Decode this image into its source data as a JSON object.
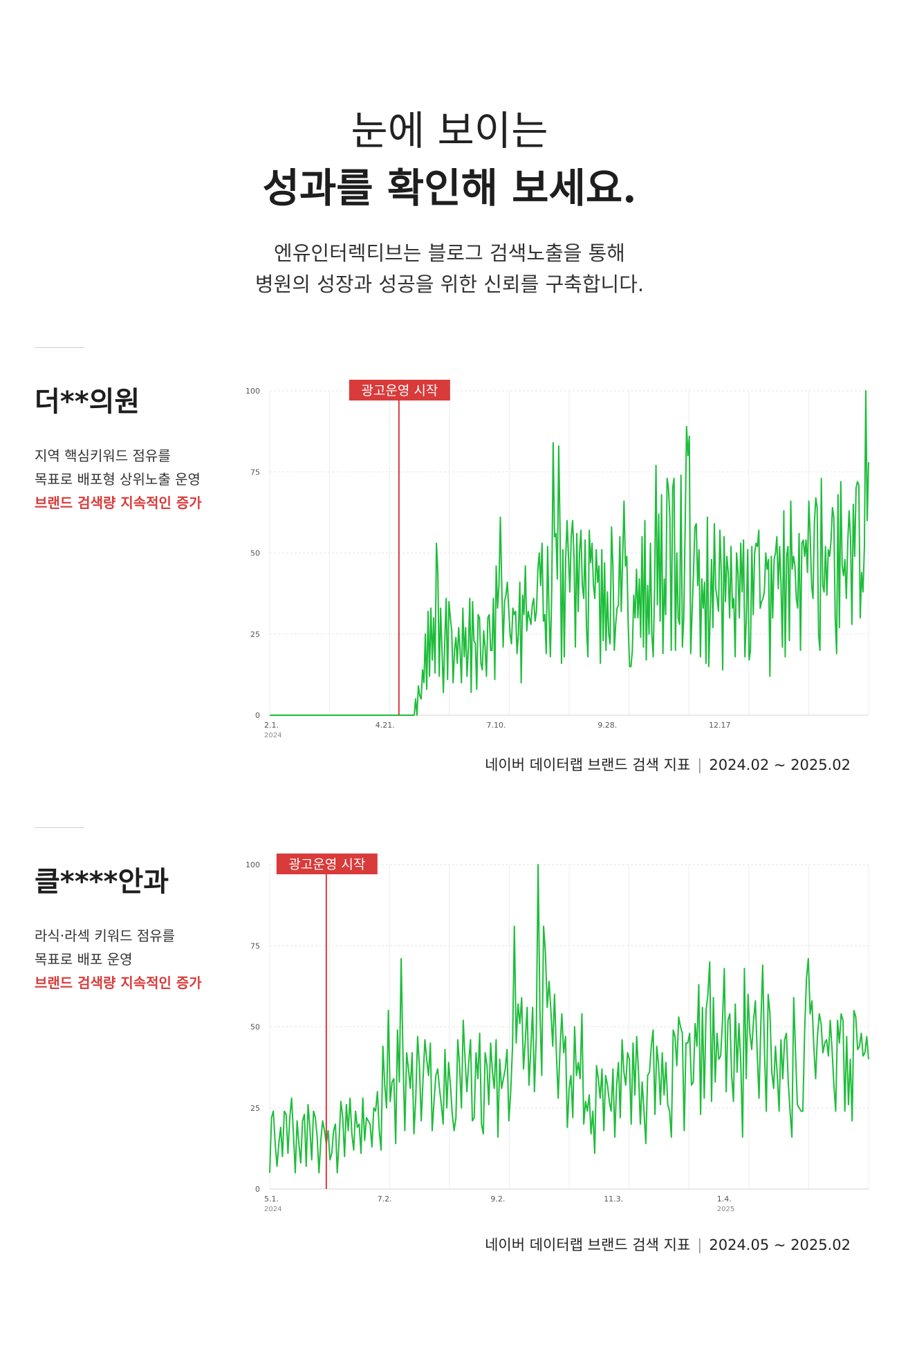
{
  "hero": {
    "headline_line1": "눈에 보이는",
    "headline_line2": "성과를 확인해 보세요.",
    "intro_line1": "엔유인터렉티브는 블로그 검색노출을 통해",
    "intro_line2": "병원의 성장과 성공을 위한 신뢰를 구축합니다."
  },
  "cases": [
    {
      "title": "더**의원",
      "desc_line1": "지역 핵심키워드 점유를",
      "desc_line2": "목표로 배포형 상위노출 운영",
      "highlight": "브랜드 검색량 지속적인 증가",
      "caption_source": "네이버 데이터랩 브랜드 검색 지표",
      "caption_separator": "|",
      "caption_period": "2024.02 ~ 2025.02"
    },
    {
      "title": "클****안과",
      "desc_line1": "라식·라섹 키워드 점유를",
      "desc_line2": "목표로 배포 운영",
      "highlight": "브랜드 검색량 지속적인 증가",
      "caption_source": "네이버 데이터랩 브랜드 검색 지표",
      "caption_separator": "|",
      "caption_period": "2024.05 ~ 2025.02"
    }
  ],
  "chart_data": [
    {
      "type": "line",
      "title": "",
      "ylim": [
        0,
        100
      ],
      "y_ticks": [
        0,
        25,
        50,
        75,
        100
      ],
      "y_tick_labels": [
        "0",
        "25",
        "50",
        "75",
        "100"
      ],
      "x_tick_labels": [
        {
          "label": "2.1.",
          "sub": "2024",
          "index": 0
        },
        {
          "label": "4.21.",
          "sub": "",
          "index": 80
        },
        {
          "label": "7.10.",
          "sub": "",
          "index": 160
        },
        {
          "label": "9.28.",
          "sub": "",
          "index": 240
        },
        {
          "label": "12.17",
          "sub": "",
          "index": 320
        }
      ],
      "grid": true,
      "annotation": {
        "label": "광고운영 시작",
        "index": 93,
        "color": "#d93a3a"
      },
      "series": [
        {
          "color": "#1dbd3a",
          "values": [
            0,
            0,
            0,
            0,
            0,
            0,
            0,
            0,
            0,
            0,
            0,
            0,
            0,
            0,
            0,
            0,
            0,
            0,
            0,
            0,
            0,
            0,
            0,
            0,
            0,
            0,
            0,
            0,
            0,
            0,
            0,
            0,
            0,
            0,
            0,
            0,
            0,
            0,
            0,
            0,
            0,
            0,
            0,
            0,
            0,
            0,
            0,
            0,
            0,
            0,
            0,
            0,
            0,
            0,
            0,
            0,
            0,
            0,
            0,
            0,
            0,
            0,
            0,
            0,
            0,
            0,
            0,
            0,
            0,
            0,
            0,
            0,
            0,
            0,
            0,
            0,
            0,
            0,
            0,
            0,
            0,
            0,
            0,
            0,
            0,
            0,
            0,
            0,
            0,
            0,
            0,
            0,
            0,
            0,
            0,
            0,
            0,
            0,
            0,
            0,
            0,
            0,
            0,
            0,
            0,
            5,
            0,
            9,
            6,
            5,
            14,
            10,
            25,
            8,
            32,
            12,
            33,
            17,
            30,
            13,
            53,
            44,
            12,
            33,
            20,
            7,
            23,
            36,
            11,
            35,
            30,
            26,
            10,
            20,
            24,
            16,
            27,
            20,
            10,
            33,
            18,
            27,
            12,
            21,
            36,
            7,
            35,
            23,
            22,
            8,
            31,
            30,
            16,
            14,
            26,
            21,
            12,
            30,
            31,
            20,
            20,
            36,
            11,
            46,
            33,
            40,
            61,
            40,
            21,
            35,
            37,
            41,
            33,
            25,
            22,
            33,
            31,
            32,
            19,
            25,
            41,
            10,
            37,
            31,
            46,
            26,
            32,
            30,
            28,
            34,
            36,
            29,
            32,
            45,
            50,
            40,
            53,
            29,
            31,
            19,
            52,
            32,
            18,
            39,
            84,
            55,
            56,
            42,
            83,
            56,
            16,
            51,
            18,
            48,
            60,
            49,
            38,
            55,
            60,
            49,
            21,
            56,
            32,
            50,
            57,
            40,
            36,
            54,
            27,
            18,
            57,
            47,
            53,
            40,
            36,
            51,
            41,
            46,
            16,
            51,
            23,
            47,
            20,
            38,
            25,
            22,
            58,
            46,
            20,
            28,
            33,
            34,
            55,
            32,
            48,
            66,
            46,
            49,
            28,
            15,
            15,
            20,
            37,
            30,
            45,
            30,
            42,
            24,
            55,
            21,
            60,
            17,
            40,
            25,
            53,
            25,
            18,
            39,
            77,
            34,
            62,
            29,
            68,
            19,
            42,
            31,
            73,
            70,
            61,
            20,
            70,
            73,
            20,
            50,
            30,
            28,
            74,
            21,
            30,
            58,
            89,
            80,
            86,
            19,
            32,
            44,
            58,
            59,
            40,
            51,
            18,
            42,
            33,
            41,
            16,
            61,
            15,
            31,
            48,
            27,
            59,
            39,
            36,
            32,
            57,
            44,
            14,
            55,
            35,
            49,
            44,
            30,
            52,
            33,
            36,
            18,
            50,
            44,
            30,
            53,
            38,
            54,
            18,
            30,
            51,
            17,
            20,
            52,
            31,
            50,
            53,
            52,
            57,
            33,
            35,
            36,
            38,
            50,
            45,
            48,
            12,
            49,
            30,
            48,
            50,
            55,
            39,
            52,
            40,
            21,
            63,
            18,
            49,
            52,
            23,
            66,
            45,
            49,
            46,
            36,
            33,
            56,
            20,
            53,
            54,
            49,
            54,
            44,
            66,
            55,
            40,
            36,
            59,
            67,
            64,
            25,
            20,
            73,
            40,
            38,
            52,
            37,
            51,
            49,
            54,
            64,
            61,
            30,
            19,
            68,
            27,
            72,
            46,
            43,
            48,
            36,
            53,
            63,
            55,
            28,
            65,
            49,
            70,
            72,
            71,
            30,
            44,
            38,
            52,
            100,
            60,
            78
          ]
        }
      ]
    },
    {
      "type": "line",
      "title": "",
      "ylim": [
        0,
        100
      ],
      "y_ticks": [
        0,
        25,
        50,
        75,
        100
      ],
      "y_tick_labels": [
        "0",
        "25",
        "50",
        "75",
        "100"
      ],
      "x_tick_labels": [
        {
          "label": "5.1.",
          "sub": "2024",
          "index": 0
        },
        {
          "label": "7.2.",
          "sub": "",
          "index": 62
        },
        {
          "label": "9.2.",
          "sub": "",
          "index": 124
        },
        {
          "label": "11.3.",
          "sub": "",
          "index": 186
        },
        {
          "label": "1.4.",
          "sub": "2025",
          "index": 248
        }
      ],
      "grid": true,
      "annotation": {
        "label": "광고운영 시작",
        "index": 31,
        "color": "#d93a3a"
      },
      "series": [
        {
          "color": "#1dbd3a",
          "values": [
            5,
            22,
            24,
            14,
            7,
            14,
            19,
            10,
            24,
            23,
            11,
            22,
            28,
            17,
            5,
            21,
            14,
            8,
            21,
            23,
            7,
            26,
            19,
            9,
            24,
            22,
            16,
            5,
            15,
            21,
            18,
            14,
            18,
            9,
            11,
            18,
            20,
            5,
            15,
            27,
            22,
            10,
            26,
            18,
            28,
            17,
            12,
            24,
            19,
            20,
            11,
            28,
            15,
            22,
            21,
            20,
            13,
            25,
            24,
            30,
            18,
            12,
            44,
            32,
            25,
            55,
            27,
            33,
            34,
            14,
            49,
            33,
            71,
            41,
            18,
            42,
            37,
            31,
            42,
            17,
            28,
            47,
            38,
            21,
            34,
            46,
            40,
            35,
            45,
            18,
            27,
            35,
            37,
            31,
            26,
            20,
            43,
            25,
            39,
            32,
            23,
            18,
            22,
            46,
            38,
            25,
            52,
            40,
            30,
            39,
            46,
            21,
            22,
            42,
            34,
            48,
            20,
            17,
            42,
            38,
            26,
            45,
            36,
            31,
            46,
            16,
            40,
            31,
            34,
            37,
            43,
            21,
            30,
            44,
            81,
            45,
            57,
            51,
            59,
            37,
            46,
            56,
            32,
            43,
            56,
            30,
            47,
            100,
            55,
            35,
            81,
            73,
            56,
            64,
            55,
            44,
            60,
            42,
            28,
            43,
            54,
            42,
            47,
            19,
            31,
            35,
            22,
            50,
            35,
            39,
            34,
            54,
            20,
            27,
            24,
            29,
            17,
            24,
            11,
            38,
            34,
            28,
            37,
            18,
            35,
            32,
            27,
            24,
            37,
            16,
            32,
            39,
            22,
            46,
            36,
            32,
            42,
            40,
            20,
            45,
            29,
            47,
            36,
            20,
            33,
            24,
            14,
            35,
            36,
            44,
            49,
            23,
            44,
            38,
            26,
            42,
            29,
            39,
            26,
            24,
            16,
            49,
            47,
            38,
            53,
            50,
            48,
            18,
            45,
            45,
            48,
            32,
            33,
            51,
            44,
            63,
            23,
            56,
            28,
            55,
            60,
            70,
            27,
            59,
            33,
            48,
            40,
            41,
            52,
            68,
            30,
            52,
            54,
            35,
            27,
            57,
            36,
            51,
            39,
            16,
            68,
            34,
            60,
            48,
            43,
            52,
            58,
            42,
            28,
            51,
            69,
            42,
            24,
            60,
            54,
            36,
            31,
            44,
            35,
            24,
            46,
            34,
            46,
            48,
            33,
            24,
            16,
            59,
            42,
            26,
            25,
            24,
            24,
            49,
            65,
            71,
            54,
            58,
            44,
            34,
            47,
            54,
            51,
            42,
            45,
            46,
            41,
            52,
            43,
            32,
            24,
            52,
            45,
            54,
            52,
            24,
            47,
            26,
            40,
            21,
            55,
            53,
            43,
            44,
            48,
            41,
            42,
            47,
            40
          ]
        }
      ]
    }
  ]
}
